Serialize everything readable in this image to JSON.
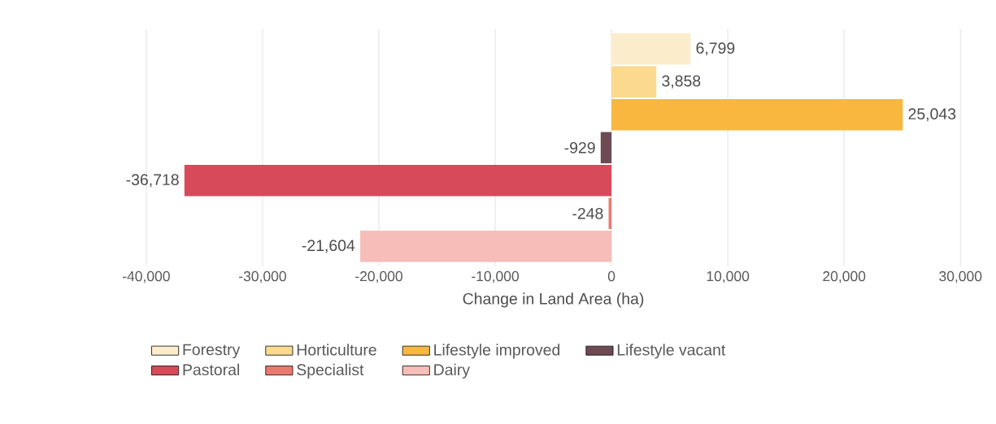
{
  "chart_data": {
    "type": "bar",
    "orientation": "horizontal",
    "xlabel": "Change in Land Area (ha)",
    "categories": [
      null,
      null,
      null,
      null,
      null,
      null,
      null
    ],
    "series": [
      {
        "name": "Forestry",
        "color": "#fbeccb",
        "values": [
          6799,
          null,
          null,
          null,
          null,
          null,
          null
        ],
        "value_labels": [
          "6,799",
          null,
          null,
          null,
          null,
          null,
          null
        ]
      },
      {
        "name": "Horticulture",
        "color": "#fbd98f",
        "values": [
          null,
          3858,
          null,
          null,
          null,
          null,
          null
        ],
        "value_labels": [
          null,
          "3,858",
          null,
          null,
          null,
          null,
          null
        ]
      },
      {
        "name": "Lifestyle improved",
        "color": "#f9b73f",
        "values": [
          null,
          null,
          25043,
          null,
          null,
          null,
          null
        ],
        "value_labels": [
          null,
          null,
          "25,043",
          null,
          null,
          null,
          null
        ]
      },
      {
        "name": "Lifestyle vacant",
        "color": "#6e4a55",
        "values": [
          null,
          null,
          null,
          -929,
          null,
          null,
          null
        ],
        "value_labels": [
          null,
          null,
          null,
          "-929",
          null,
          null,
          null
        ]
      },
      {
        "name": "Pastoral",
        "color": "#d64a5a",
        "values": [
          null,
          null,
          null,
          null,
          -36718,
          null,
          null
        ],
        "value_labels": [
          null,
          null,
          null,
          null,
          "-36,718",
          null,
          null
        ]
      },
      {
        "name": "Specialist",
        "color": "#ea7a70",
        "values": [
          null,
          null,
          null,
          null,
          null,
          -248,
          null
        ],
        "value_labels": [
          null,
          null,
          null,
          null,
          null,
          "-248",
          null
        ]
      },
      {
        "name": "Dairy",
        "color": "#f6bdb9",
        "values": [
          null,
          null,
          null,
          null,
          null,
          null,
          -21604
        ],
        "value_labels": [
          null,
          null,
          null,
          null,
          null,
          null,
          "-21,604"
        ]
      }
    ],
    "xlim": [
      -40000,
      30000
    ],
    "xticks": [
      {
        "value": -40000,
        "label": "-40,000"
      },
      {
        "value": -30000,
        "label": "-30,000"
      },
      {
        "value": -20000,
        "label": "-20,000"
      },
      {
        "value": -10000,
        "label": "-10,000"
      },
      {
        "value": 0,
        "label": "0"
      },
      {
        "value": 10000,
        "label": "10,000"
      },
      {
        "value": 20000,
        "label": "20,000"
      },
      {
        "value": 30000,
        "label": "30,000"
      }
    ],
    "grid": "x",
    "legend": "bottom",
    "tick_labels": "x"
  }
}
